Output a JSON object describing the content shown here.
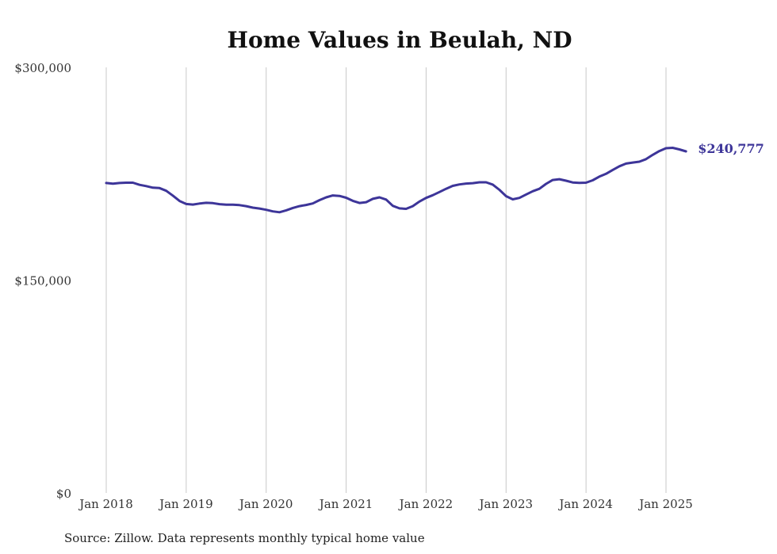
{
  "chart_data": {
    "type": "line",
    "title": "Home Values in Beulah, ND",
    "xlabel": "",
    "ylabel": "",
    "ylim": [
      0,
      300000
    ],
    "y_ticks": [
      {
        "value": 0,
        "label": "$0"
      },
      {
        "value": 150000,
        "label": "$150,000"
      },
      {
        "value": 300000,
        "label": "$300,000"
      }
    ],
    "x_ticks": [
      {
        "date": "2018-01",
        "label": "Jan 2018"
      },
      {
        "date": "2019-01",
        "label": "Jan 2019"
      },
      {
        "date": "2020-01",
        "label": "Jan 2020"
      },
      {
        "date": "2021-01",
        "label": "Jan 2021"
      },
      {
        "date": "2022-01",
        "label": "Jan 2022"
      },
      {
        "date": "2023-01",
        "label": "Jan 2023"
      },
      {
        "date": "2024-01",
        "label": "Jan 2024"
      },
      {
        "date": "2025-01",
        "label": "Jan 2025"
      }
    ],
    "grid": {
      "vertical": true,
      "horizontal": false
    },
    "line_color": "#3d3599",
    "end_label": "$240,777",
    "series": [
      {
        "name": "",
        "points": [
          [
            "2018-01",
            218500
          ],
          [
            "2018-02",
            218000
          ],
          [
            "2018-03",
            218500
          ],
          [
            "2018-04",
            218700
          ],
          [
            "2018-05",
            218700
          ],
          [
            "2018-06",
            217200
          ],
          [
            "2018-07",
            216300
          ],
          [
            "2018-08",
            215200
          ],
          [
            "2018-09",
            214900
          ],
          [
            "2018-10",
            213000
          ],
          [
            "2018-11",
            209600
          ],
          [
            "2018-12",
            205800
          ],
          [
            "2019-01",
            203700
          ],
          [
            "2019-02",
            203300
          ],
          [
            "2019-03",
            204000
          ],
          [
            "2019-04",
            204500
          ],
          [
            "2019-05",
            204300
          ],
          [
            "2019-06",
            203600
          ],
          [
            "2019-07",
            203200
          ],
          [
            "2019-08",
            203200
          ],
          [
            "2019-09",
            202900
          ],
          [
            "2019-10",
            202200
          ],
          [
            "2019-11",
            201100
          ],
          [
            "2019-12",
            200500
          ],
          [
            "2020-01",
            199600
          ],
          [
            "2020-02",
            198500
          ],
          [
            "2020-03",
            197900
          ],
          [
            "2020-04",
            199200
          ],
          [
            "2020-05",
            200900
          ],
          [
            "2020-06",
            202200
          ],
          [
            "2020-07",
            203000
          ],
          [
            "2020-08",
            204100
          ],
          [
            "2020-09",
            206400
          ],
          [
            "2020-10",
            208400
          ],
          [
            "2020-11",
            209700
          ],
          [
            "2020-12",
            209400
          ],
          [
            "2021-01",
            208100
          ],
          [
            "2021-02",
            205900
          ],
          [
            "2021-03",
            204400
          ],
          [
            "2021-04",
            205000
          ],
          [
            "2021-05",
            207300
          ],
          [
            "2021-06",
            208400
          ],
          [
            "2021-07",
            206800
          ],
          [
            "2021-08",
            202400
          ],
          [
            "2021-09",
            200600
          ],
          [
            "2021-10",
            200300
          ],
          [
            "2021-11",
            202200
          ],
          [
            "2021-12",
            205400
          ],
          [
            "2022-01",
            208000
          ],
          [
            "2022-02",
            209900
          ],
          [
            "2022-03",
            212100
          ],
          [
            "2022-04",
            214400
          ],
          [
            "2022-05",
            216500
          ],
          [
            "2022-06",
            217500
          ],
          [
            "2022-07",
            218100
          ],
          [
            "2022-08",
            218400
          ],
          [
            "2022-09",
            219000
          ],
          [
            "2022-10",
            219000
          ],
          [
            "2022-11",
            217400
          ],
          [
            "2022-12",
            213700
          ],
          [
            "2023-01",
            209200
          ],
          [
            "2023-02",
            207000
          ],
          [
            "2023-03",
            208000
          ],
          [
            "2023-04",
            210400
          ],
          [
            "2023-05",
            212700
          ],
          [
            "2023-06",
            214400
          ],
          [
            "2023-07",
            217900
          ],
          [
            "2023-08",
            220600
          ],
          [
            "2023-09",
            221200
          ],
          [
            "2023-10",
            220100
          ],
          [
            "2023-11",
            218900
          ],
          [
            "2023-12",
            218600
          ],
          [
            "2024-01",
            218700
          ],
          [
            "2024-02",
            220400
          ],
          [
            "2024-03",
            223000
          ],
          [
            "2024-04",
            225000
          ],
          [
            "2024-05",
            227700
          ],
          [
            "2024-06",
            230300
          ],
          [
            "2024-07",
            232200
          ],
          [
            "2024-08",
            232900
          ],
          [
            "2024-09",
            233500
          ],
          [
            "2024-10",
            235300
          ],
          [
            "2024-11",
            238300
          ],
          [
            "2024-12",
            241000
          ],
          [
            "2025-01",
            243000
          ],
          [
            "2025-02",
            243300
          ],
          [
            "2025-03",
            242200
          ],
          [
            "2025-04",
            240777
          ]
        ]
      }
    ]
  },
  "footer": {
    "source": "Source: Zillow. Data represents monthly typical home value"
  }
}
